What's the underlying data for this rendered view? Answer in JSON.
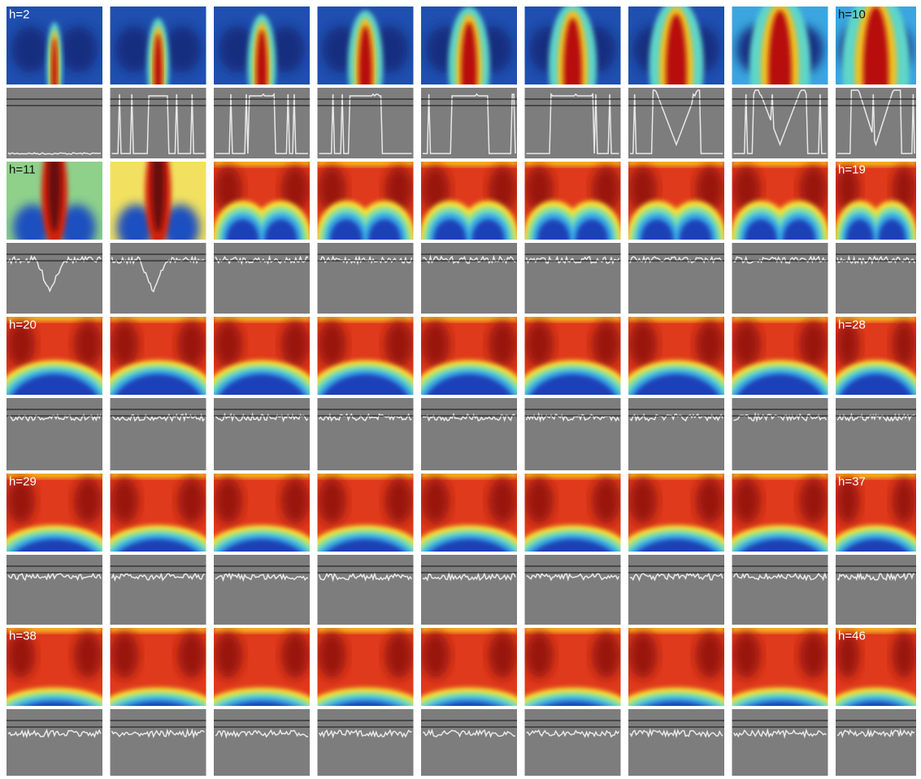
{
  "rows": [
    {
      "labels": [
        "h=2",
        "h=10"
      ]
    },
    {
      "labels": [
        "h=11",
        "h=19"
      ]
    },
    {
      "labels": [
        "h=20",
        "h=28"
      ]
    },
    {
      "labels": [
        "h=29",
        "h=37"
      ]
    },
    {
      "labels": [
        "h=38",
        "h=46"
      ]
    }
  ]
}
